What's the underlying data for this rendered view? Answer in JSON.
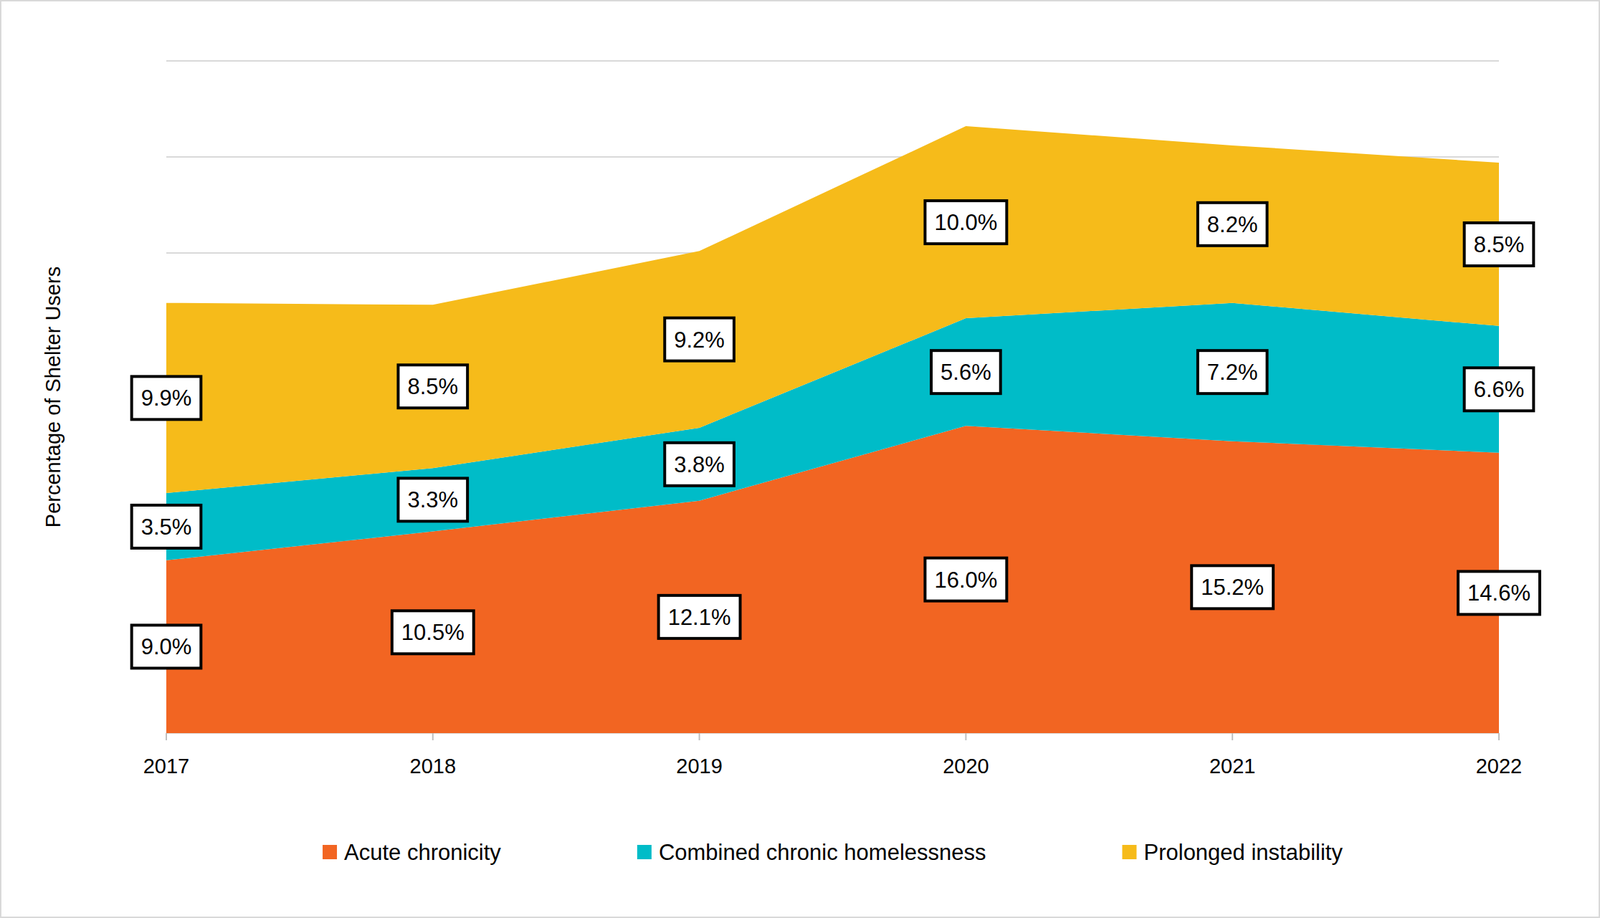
{
  "chart_data": {
    "type": "area",
    "stacked": true,
    "y_label": "Percentage of Shelter Users",
    "categories": [
      "2017",
      "2018",
      "2019",
      "2020",
      "2021",
      "2022"
    ],
    "series": [
      {
        "name": "Acute chronicity",
        "color": "#f26522",
        "values": [
          9.0,
          10.5,
          12.1,
          16.0,
          15.2,
          14.6
        ],
        "value_labels": [
          "9.0%",
          "10.5%",
          "12.1%",
          "16.0%",
          "15.2%",
          "14.6%"
        ]
      },
      {
        "name": "Combined chronic homelessness",
        "color": "#00bcc8",
        "values": [
          3.5,
          3.3,
          3.8,
          5.6,
          7.2,
          6.6
        ],
        "value_labels": [
          "3.5%",
          "3.3%",
          "3.8%",
          "5.6%",
          "7.2%",
          "6.6%"
        ]
      },
      {
        "name": "Prolonged instability",
        "color": "#f6bb1a",
        "values": [
          9.9,
          8.5,
          9.2,
          10.0,
          8.2,
          8.5
        ],
        "value_labels": [
          "9.9%",
          "8.5%",
          "9.2%",
          "10.0%",
          "8.2%",
          "8.5%"
        ]
      }
    ],
    "ylim": [
      0,
      35
    ],
    "yticks": [
      0,
      5,
      10,
      15,
      20,
      25,
      30,
      35
    ],
    "grid": true,
    "tick_labels": "x",
    "data_labels": true,
    "legend": "bottom"
  }
}
